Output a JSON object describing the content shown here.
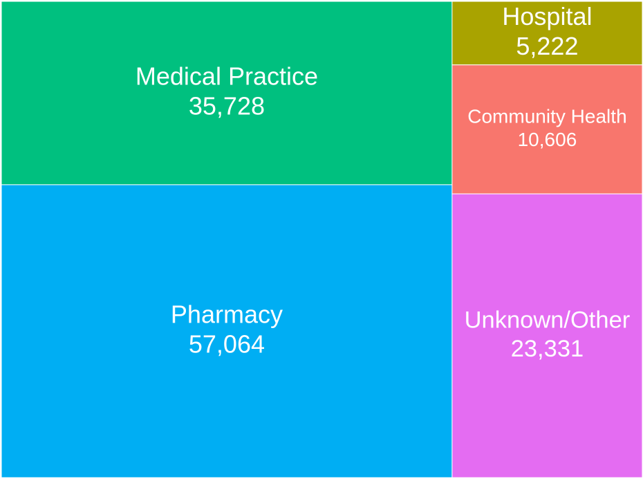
{
  "chart_data": {
    "type": "treemap",
    "categories": [
      "Medical Practice",
      "Pharmacy",
      "Hospital",
      "Community Health",
      "Unknown/Other"
    ],
    "values": [
      35728,
      57064,
      5222,
      10606,
      23331
    ],
    "value_labels": [
      "35,728",
      "57,064",
      "5,222",
      "10,606",
      "23,331"
    ],
    "colors": [
      "#00c07f",
      "#00aef3",
      "#a9a300",
      "#f8766d",
      "#e46cf2"
    ]
  }
}
